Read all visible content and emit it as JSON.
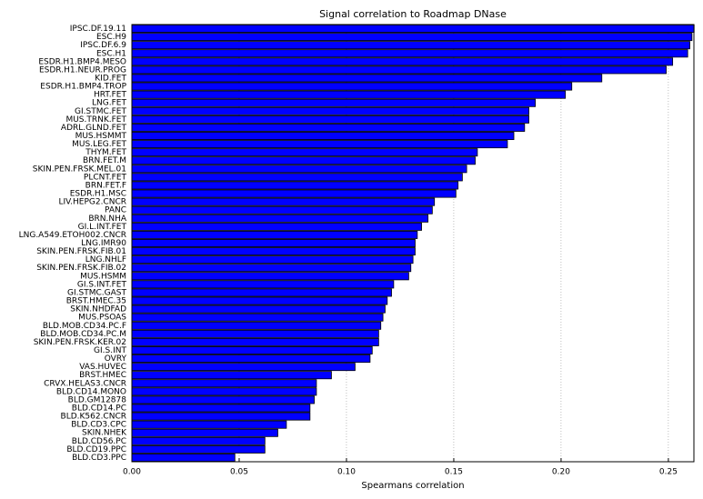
{
  "chart_data": {
    "type": "barh",
    "title": "Signal correlation to Roadmap DNase",
    "xlabel": "Spearmans correlation",
    "categories": [
      "IPSC.DF.19.11",
      "ESC.H9",
      "IPSC.DF.6.9",
      "ESC.H1",
      "ESDR.H1.BMP4.MESO",
      "ESDR.H1.NEUR.PROG",
      "KID.FET",
      "ESDR.H1.BMP4.TROP",
      "HRT.FET",
      "LNG.FET",
      "GI.STMC.FET",
      "MUS.TRNK.FET",
      "ADRL.GLND.FET",
      "MUS.HSMMT",
      "MUS.LEG.FET",
      "THYM.FET",
      "BRN.FET.M",
      "SKIN.PEN.FRSK.MEL.01",
      "PLCNT.FET",
      "BRN.FET.F",
      "ESDR.H1.MSC",
      "LIV.HEPG2.CNCR",
      "PANC",
      "BRN.NHA",
      "GI.L.INT.FET",
      "LNG.A549.ETOH002.CNCR",
      "LNG.IMR90",
      "SKIN.PEN.FRSK.FIB.01",
      "LNG.NHLF",
      "SKIN.PEN.FRSK.FIB.02",
      "MUS.HSMM",
      "GI.S.INT.FET",
      "GI.STMC.GAST",
      "BRST.HMEC.35",
      "SKIN.NHDFAD",
      "MUS.PSOAS",
      "BLD.MOB.CD34.PC.F",
      "BLD.MOB.CD34.PC.M",
      "SKIN.PEN.FRSK.KER.02",
      "GI.S.INT",
      "OVRY",
      "VAS.HUVEC",
      "BRST.HMEC",
      "CRVX.HELAS3.CNCR",
      "BLD.CD14.MONO",
      "BLD.GM12878",
      "BLD.CD14.PC",
      "BLD.K562.CNCR",
      "BLD.CD3.CPC",
      "SKIN.NHEK",
      "BLD.CD56.PC",
      "BLD.CD19.PPC",
      "BLD.CD3.PPC"
    ],
    "values": [
      0.262,
      0.261,
      0.26,
      0.259,
      0.252,
      0.249,
      0.219,
      0.205,
      0.202,
      0.188,
      0.185,
      0.185,
      0.183,
      0.178,
      0.175,
      0.161,
      0.16,
      0.156,
      0.154,
      0.152,
      0.151,
      0.141,
      0.14,
      0.138,
      0.135,
      0.133,
      0.132,
      0.132,
      0.131,
      0.13,
      0.129,
      0.122,
      0.121,
      0.119,
      0.118,
      0.117,
      0.116,
      0.115,
      0.115,
      0.112,
      0.111,
      0.104,
      0.093,
      0.086,
      0.086,
      0.085,
      0.083,
      0.083,
      0.072,
      0.068,
      0.062,
      0.062,
      0.048
    ],
    "color": "#0000ff",
    "xlim": [
      0,
      0.2619
    ],
    "xticks": [
      {
        "value": 0,
        "label": "0.00"
      },
      {
        "value": 0.05,
        "label": "0.05"
      },
      {
        "value": 0.1,
        "label": "0.10"
      },
      {
        "value": 0.15,
        "label": "0.15"
      },
      {
        "value": 0.2,
        "label": "0.20"
      },
      {
        "value": 0.25,
        "label": "0.25"
      }
    ],
    "grid": true
  }
}
